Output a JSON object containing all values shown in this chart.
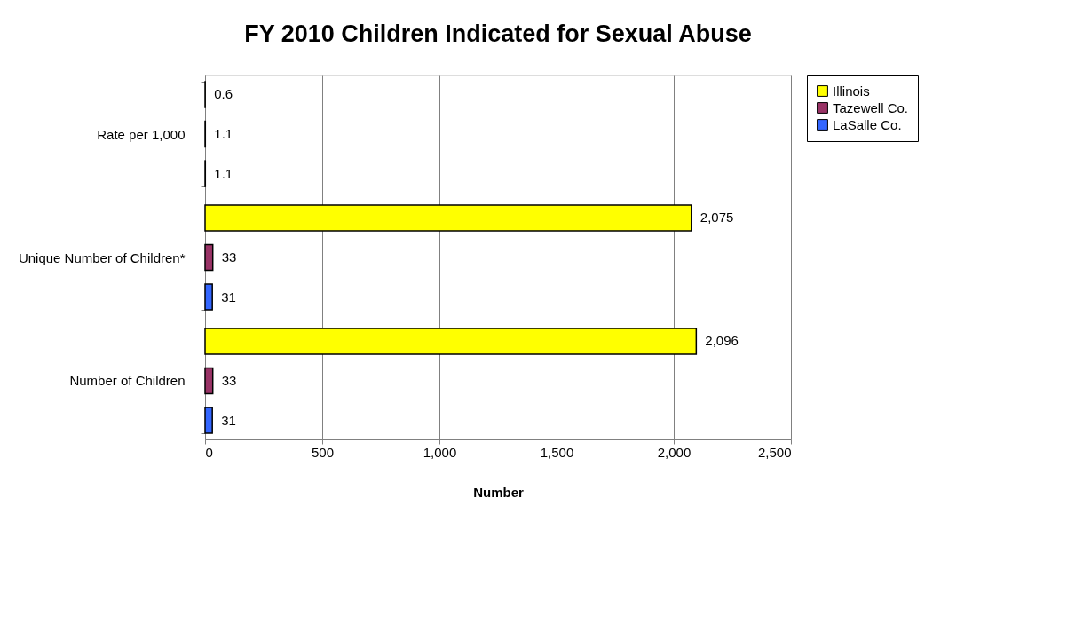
{
  "chart_data": {
    "type": "bar",
    "orientation": "horizontal",
    "title": "FY 2010 Children Indicated for Sexual Abuse",
    "xlabel": "Number",
    "categories": [
      "Rate per 1,000",
      "Unique Number of Children*",
      "Number of Children"
    ],
    "series": [
      {
        "name": "Illinois",
        "color": "#ffff00",
        "values": [
          0.6,
          2075,
          2096
        ],
        "value_labels": [
          "0.6",
          "2,075",
          "2,096"
        ]
      },
      {
        "name": "Tazewell Co.",
        "color": "#993366",
        "values": [
          1.1,
          33,
          33
        ],
        "value_labels": [
          "1.1",
          "33",
          "33"
        ]
      },
      {
        "name": "LaSalle Co.",
        "color": "#3366ff",
        "values": [
          1.1,
          31,
          31
        ],
        "value_labels": [
          "1.1",
          "31",
          "31"
        ]
      }
    ],
    "xlim": [
      0,
      2500
    ],
    "xticks": [
      0,
      500,
      {
        "value": 1000,
        "label": "1,000"
      },
      {
        "value": 1500,
        "label": "1,500"
      },
      {
        "value": 2000,
        "label": "2,000"
      },
      {
        "value": 2500,
        "label": "2,500"
      }
    ],
    "grid": "x",
    "legend": "right"
  }
}
